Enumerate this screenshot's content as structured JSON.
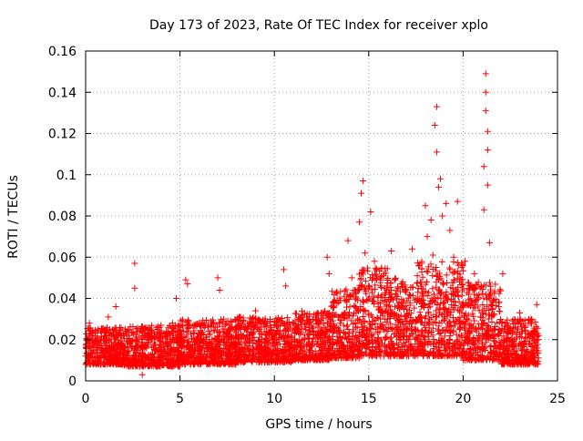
{
  "chart_data": {
    "type": "scatter",
    "title": "Day 173 of 2023, Rate Of TEC Index for receiver xplo",
    "xlabel": "GPS time / hours",
    "ylabel": "ROTI / TECUs",
    "xlim": [
      0,
      25
    ],
    "ylim": [
      0,
      0.16
    ],
    "x_ticks": [
      0,
      5,
      10,
      15,
      20,
      25
    ],
    "x_tick_labels": [
      "0",
      "5",
      "10",
      "15",
      "20",
      "25"
    ],
    "y_ticks": [
      0,
      0.02,
      0.04,
      0.06,
      0.08,
      0.1,
      0.12,
      0.14,
      0.16
    ],
    "y_tick_labels": [
      "0",
      "0.02",
      "0.04",
      "0.06",
      "0.08",
      "0.1",
      "0.12",
      "0.14",
      "0.16"
    ],
    "grid": true,
    "marker": "+",
    "marker_color": "#ff0000",
    "series": [
      {
        "name": "ROTI",
        "points": [
          [
            0.0,
            0.012
          ],
          [
            0.1,
            0.02
          ],
          [
            0.2,
            0.028
          ],
          [
            0.3,
            0.015
          ],
          [
            0.4,
            0.009
          ],
          [
            0.6,
            0.018
          ],
          [
            0.8,
            0.024
          ],
          [
            1.0,
            0.013
          ],
          [
            1.2,
            0.031
          ],
          [
            1.4,
            0.016
          ],
          [
            1.6,
            0.036
          ],
          [
            1.8,
            0.011
          ],
          [
            2.0,
            0.022
          ],
          [
            2.2,
            0.014
          ],
          [
            2.4,
            0.019
          ],
          [
            2.6,
            0.057
          ],
          [
            2.6,
            0.045
          ],
          [
            2.8,
            0.017
          ],
          [
            3.0,
            0.003
          ],
          [
            3.1,
            0.008
          ],
          [
            3.3,
            0.021
          ],
          [
            3.5,
            0.012
          ],
          [
            3.8,
            0.025
          ],
          [
            4.0,
            0.015
          ],
          [
            4.3,
            0.018
          ],
          [
            4.6,
            0.028
          ],
          [
            4.8,
            0.04
          ],
          [
            5.0,
            0.013
          ],
          [
            5.2,
            0.024
          ],
          [
            5.3,
            0.049
          ],
          [
            5.4,
            0.047
          ],
          [
            5.6,
            0.016
          ],
          [
            5.9,
            0.021
          ],
          [
            6.2,
            0.011
          ],
          [
            6.5,
            0.027
          ],
          [
            6.8,
            0.019
          ],
          [
            7.0,
            0.05
          ],
          [
            7.1,
            0.044
          ],
          [
            7.2,
            0.014
          ],
          [
            7.5,
            0.023
          ],
          [
            7.8,
            0.017
          ],
          [
            8.1,
            0.029
          ],
          [
            8.4,
            0.012
          ],
          [
            8.7,
            0.02
          ],
          [
            9.0,
            0.034
          ],
          [
            9.3,
            0.016
          ],
          [
            9.6,
            0.022
          ],
          [
            9.9,
            0.013
          ],
          [
            10.2,
            0.027
          ],
          [
            10.5,
            0.054
          ],
          [
            10.6,
            0.046
          ],
          [
            10.8,
            0.018
          ],
          [
            11.1,
            0.025
          ],
          [
            11.4,
            0.015
          ],
          [
            11.7,
            0.031
          ],
          [
            12.0,
            0.019
          ],
          [
            12.3,
            0.028
          ],
          [
            12.6,
            0.022
          ],
          [
            12.8,
            0.06
          ],
          [
            12.9,
            0.052
          ],
          [
            13.1,
            0.033
          ],
          [
            13.4,
            0.024
          ],
          [
            13.7,
            0.041
          ],
          [
            13.9,
            0.068
          ],
          [
            14.1,
            0.05
          ],
          [
            14.3,
            0.036
          ],
          [
            14.5,
            0.077
          ],
          [
            14.6,
            0.091
          ],
          [
            14.7,
            0.097
          ],
          [
            14.8,
            0.062
          ],
          [
            15.0,
            0.045
          ],
          [
            15.1,
            0.082
          ],
          [
            15.3,
            0.058
          ],
          [
            15.5,
            0.038
          ],
          [
            15.8,
            0.052
          ],
          [
            16.0,
            0.03
          ],
          [
            16.2,
            0.063
          ],
          [
            16.5,
            0.041
          ],
          [
            16.8,
            0.048
          ],
          [
            17.0,
            0.035
          ],
          [
            17.3,
            0.064
          ],
          [
            17.6,
            0.043
          ],
          [
            17.8,
            0.057
          ],
          [
            18.0,
            0.085
          ],
          [
            18.1,
            0.07
          ],
          [
            18.3,
            0.078
          ],
          [
            18.4,
            0.061
          ],
          [
            18.5,
            0.124
          ],
          [
            18.6,
            0.133
          ],
          [
            18.6,
            0.111
          ],
          [
            18.7,
            0.094
          ],
          [
            18.8,
            0.098
          ],
          [
            18.9,
            0.08
          ],
          [
            19.1,
            0.086
          ],
          [
            19.3,
            0.073
          ],
          [
            19.5,
            0.06
          ],
          [
            19.7,
            0.087
          ],
          [
            19.9,
            0.049
          ],
          [
            20.1,
            0.058
          ],
          [
            20.3,
            0.042
          ],
          [
            20.6,
            0.052
          ],
          [
            20.9,
            0.045
          ],
          [
            21.1,
            0.083
          ],
          [
            21.1,
            0.104
          ],
          [
            21.2,
            0.149
          ],
          [
            21.2,
            0.14
          ],
          [
            21.2,
            0.131
          ],
          [
            21.3,
            0.121
          ],
          [
            21.3,
            0.112
          ],
          [
            21.3,
            0.095
          ],
          [
            21.4,
            0.067
          ],
          [
            21.6,
            0.039
          ],
          [
            21.8,
            0.028
          ],
          [
            22.1,
            0.052
          ],
          [
            22.4,
            0.021
          ],
          [
            22.7,
            0.017
          ],
          [
            23.0,
            0.033
          ],
          [
            23.3,
            0.026
          ],
          [
            23.6,
            0.014
          ],
          [
            23.9,
            0.037
          ],
          [
            24.0,
            0.022
          ]
        ]
      }
    ],
    "baseline_band": [
      {
        "x": [
          0,
          2
        ],
        "low": 0.008,
        "high": 0.026
      },
      {
        "x": [
          2,
          5
        ],
        "low": 0.007,
        "high": 0.027
      },
      {
        "x": [
          5,
          8
        ],
        "low": 0.008,
        "high": 0.03
      },
      {
        "x": [
          8,
          11
        ],
        "low": 0.009,
        "high": 0.031
      },
      {
        "x": [
          11,
          13
        ],
        "low": 0.01,
        "high": 0.034
      },
      {
        "x": [
          13,
          14.5
        ],
        "low": 0.011,
        "high": 0.045
      },
      {
        "x": [
          14.5,
          16
        ],
        "low": 0.012,
        "high": 0.055
      },
      {
        "x": [
          16,
          17.5
        ],
        "low": 0.012,
        "high": 0.05
      },
      {
        "x": [
          17.5,
          20
        ],
        "low": 0.012,
        "high": 0.058
      },
      {
        "x": [
          20,
          22
        ],
        "low": 0.01,
        "high": 0.048
      },
      {
        "x": [
          22,
          24
        ],
        "low": 0.008,
        "high": 0.03
      }
    ]
  }
}
